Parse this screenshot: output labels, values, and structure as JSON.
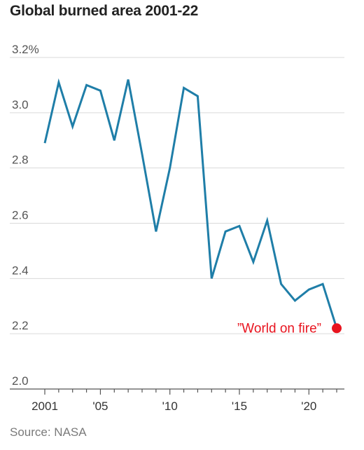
{
  "title": "Global burned area 2001-22",
  "source": "Source: NASA",
  "colors": {
    "line": "#1f7ea8",
    "highlight": "#e8141f",
    "grid": "#dadada",
    "axis": "#555555"
  },
  "chart_data": {
    "type": "line",
    "title": "Global burned area 2001-22",
    "x": [
      2001,
      2002,
      2003,
      2004,
      2005,
      2006,
      2007,
      2008,
      2009,
      2010,
      2011,
      2012,
      2013,
      2014,
      2015,
      2016,
      2017,
      2018,
      2019,
      2020,
      2021,
      2022
    ],
    "values": [
      2.89,
      3.11,
      2.95,
      3.1,
      3.08,
      2.9,
      3.12,
      2.85,
      2.57,
      2.8,
      3.09,
      3.06,
      2.4,
      2.57,
      2.59,
      2.46,
      2.61,
      2.38,
      2.32,
      2.36,
      2.38,
      2.22
    ],
    "ylim": [
      2.0,
      3.2
    ],
    "yticks": [
      2.0,
      2.2,
      2.4,
      2.6,
      2.8,
      3.0,
      3.2
    ],
    "ytick_labels": [
      "2.0",
      "2.2",
      "2.4",
      "2.6",
      "2.8",
      "3.0",
      "3.2%"
    ],
    "xticks": [
      2001,
      2005,
      2010,
      2015,
      2020
    ],
    "xtick_labels": [
      "2001",
      "'05",
      "'10",
      "'15",
      "'20"
    ],
    "grid": true,
    "annotation": {
      "text": "”World on fire”",
      "x": 2022,
      "y": 2.22
    }
  }
}
